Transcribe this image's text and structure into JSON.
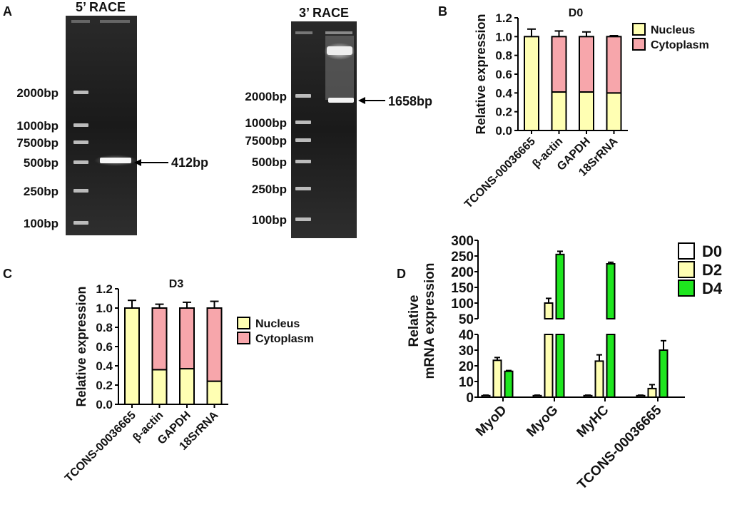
{
  "panel_labels": {
    "a": "A",
    "b": "B",
    "c": "C",
    "d": "D"
  },
  "gels": [
    {
      "title": "5’ RACE",
      "markers": [
        "2000bp",
        "1000bp",
        "7500bp",
        "500bp",
        "250bp",
        "100bp"
      ],
      "band_label": "412bp"
    },
    {
      "title": "3’ RACE",
      "markers": [
        "2000bp",
        "1000bp",
        "7500bp",
        "500bp",
        "250bp",
        "100bp"
      ],
      "band_label": "1658bp"
    }
  ],
  "colors": {
    "nucleus": "#ffffb3",
    "cytoplasm": "#f7a6ab",
    "d0": "#ffffff",
    "d2": "#ffffb3",
    "d4": "#1ee61e"
  },
  "chart_data": [
    {
      "type": "bar",
      "stacked": true,
      "title": "D0",
      "ylabel": "Relative expression",
      "xlabel": "",
      "ylim": [
        0,
        1.2
      ],
      "yticks": [
        "0.0",
        "0.2",
        "0.4",
        "0.6",
        "0.8",
        "1.0",
        "1.2"
      ],
      "categories": [
        "TCONS-00036665",
        "β-actin",
        "GAPDH",
        "18SrRNA"
      ],
      "legend": "right",
      "series": [
        {
          "name": "Nucleus",
          "values": [
            1.0,
            0.41,
            0.41,
            0.4
          ],
          "errors": [
            0.0,
            0.03,
            0.09,
            0.07
          ]
        },
        {
          "name": "Cytoplasm",
          "values": [
            0.0,
            0.59,
            0.59,
            0.6
          ],
          "errors": [
            0.08,
            0.06,
            0.05,
            0.01
          ]
        }
      ]
    },
    {
      "type": "bar",
      "stacked": true,
      "title": "D3",
      "ylabel": "Relative expression",
      "xlabel": "",
      "ylim": [
        0,
        1.2
      ],
      "yticks": [
        "0.0",
        "0.2",
        "0.4",
        "0.6",
        "0.8",
        "1.0",
        "1.2"
      ],
      "categories": [
        "TCONS-00036665",
        "β-actin",
        "GAPDH",
        "18SrRNA"
      ],
      "legend": "right",
      "series": [
        {
          "name": "Nucleus",
          "values": [
            1.0,
            0.36,
            0.37,
            0.24
          ],
          "errors": [
            0.0,
            0.02,
            0.01,
            0.02
          ]
        },
        {
          "name": "Cytoplasm",
          "values": [
            0.0,
            0.64,
            0.63,
            0.76
          ],
          "errors": [
            0.08,
            0.04,
            0.06,
            0.07
          ]
        }
      ]
    },
    {
      "type": "bar",
      "stacked": false,
      "title": "",
      "ylabel": "Relative mRNA expression",
      "ylabel_lines": [
        "Relative",
        "mRNA expression"
      ],
      "xlabel": "",
      "broken_axis": true,
      "ylim_lower": [
        0,
        40
      ],
      "yticks_lower": [
        "0",
        "10",
        "20",
        "30",
        "40"
      ],
      "ylim_upper": [
        50,
        300
      ],
      "yticks_upper": [
        "50",
        "100",
        "150",
        "200",
        "250",
        "300"
      ],
      "categories": [
        "MyoD",
        "MyoG",
        "MyHC",
        "TCONS-00036665"
      ],
      "legend": "top-right",
      "series": [
        {
          "name": "D0",
          "values": [
            1,
            1,
            1,
            1
          ],
          "errors": [
            0.3,
            0.3,
            0.3,
            0.3
          ]
        },
        {
          "name": "D2",
          "values": [
            23.5,
            100,
            23,
            5.5
          ],
          "errors": [
            1.8,
            15,
            4,
            2.5
          ]
        },
        {
          "name": "D4",
          "values": [
            16.5,
            255,
            225,
            30
          ],
          "errors": [
            0.5,
            10,
            5,
            6
          ]
        }
      ]
    }
  ]
}
